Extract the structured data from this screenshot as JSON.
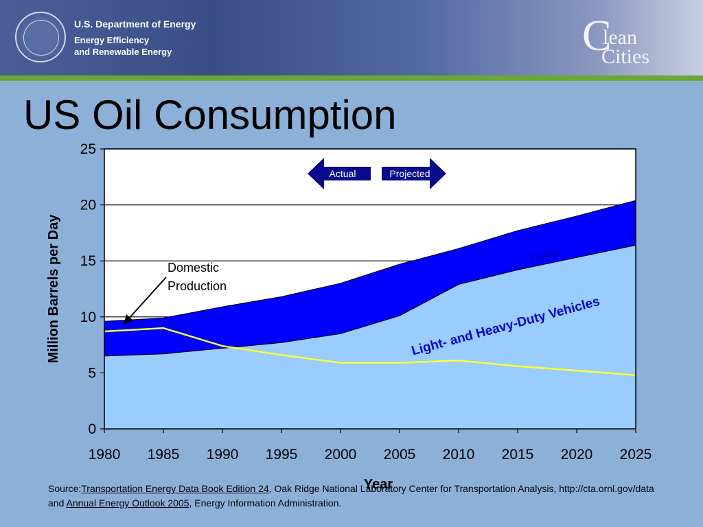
{
  "header": {
    "agency": "U.S. Department of Energy",
    "office_line1": "Energy Efficiency",
    "office_line2": "and Renewable Energy",
    "logo_letter": "C",
    "logo_word1": "lean",
    "logo_word2": "Cities",
    "seal_icon": "doe-seal-icon"
  },
  "slide": {
    "title": "US Oil Consumption"
  },
  "source": {
    "prefix": "Source:",
    "link1": "Transportation Energy Data Book Edition 24",
    "middle": ", Oak Ridge National Laboratory Center for Transportation Analysis, http://cta.ornl.gov/data and ",
    "link2": "Annual Energy Outlook 2005",
    "suffix": ", Energy Information Administration."
  },
  "chart_data": {
    "type": "area",
    "xlabel": "Year",
    "ylabel": "Million Barrels per Day",
    "ylim": [
      0,
      25
    ],
    "xlim": [
      1980,
      2025
    ],
    "x": [
      1980,
      1985,
      1990,
      1995,
      2000,
      2005,
      2010,
      2015,
      2020,
      2025
    ],
    "y_ticks": [
      0,
      5,
      10,
      15,
      20,
      25
    ],
    "grid": true,
    "colors": {
      "ldv": "#99ccff",
      "other": "#0000ff",
      "domestic": "#ffff33",
      "arrow": "#0a0a8c"
    },
    "series": [
      {
        "name": "Light- and Heavy-Duty Vehicles",
        "values": [
          6.5,
          6.7,
          7.2,
          7.7,
          8.5,
          10.1,
          12.9,
          14.2,
          15.3,
          16.4
        ]
      },
      {
        "name": "Other",
        "values": [
          9.6,
          9.9,
          10.9,
          11.8,
          13.0,
          14.7,
          16.1,
          17.7,
          19.0,
          20.4
        ]
      },
      {
        "name": "Domestic Production",
        "values": [
          8.7,
          9.0,
          7.4,
          6.6,
          5.9,
          5.9,
          6.1,
          5.6,
          5.2,
          4.8
        ]
      }
    ],
    "labels": {
      "other": "Other",
      "ldv": "Light- and Heavy-Duty Vehicles",
      "domestic_line1": "Domestic",
      "domestic_line2": "Production",
      "actual": "Actual",
      "projected": "Projected"
    }
  }
}
